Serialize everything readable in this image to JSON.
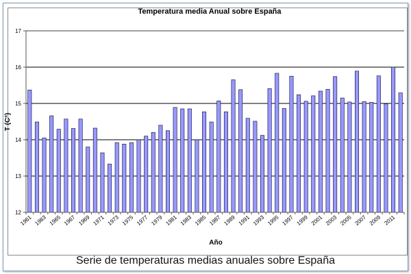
{
  "caption": "Serie de temperaturas medias anuales sobre España",
  "colors": {
    "bar_fill": "#9999ff",
    "bar_stroke": "#1c1c54",
    "grid": "#000000",
    "axis": "#555555"
  },
  "chart_data": {
    "type": "bar",
    "title": "Temperatura media Anual sobre España",
    "xlabel": "Año",
    "ylabel": "T (C°)",
    "ylim": [
      12,
      17
    ],
    "yticks": [
      "12",
      "13",
      "14",
      "15",
      "16",
      "17"
    ],
    "xtick_labels": [
      "1961",
      "1963",
      "1965",
      "1967",
      "1969",
      "1971",
      "1973",
      "1975",
      "1977",
      "1979",
      "1981",
      "1983",
      "1985",
      "1987",
      "1989",
      "1991",
      "1993",
      "1995",
      "1997",
      "1999",
      "2001",
      "2003",
      "2005",
      "2007",
      "2009",
      "2011"
    ],
    "categories": [
      1961,
      1962,
      1963,
      1964,
      1965,
      1966,
      1967,
      1968,
      1969,
      1970,
      1971,
      1972,
      1973,
      1974,
      1975,
      1976,
      1977,
      1978,
      1979,
      1980,
      1981,
      1982,
      1983,
      1984,
      1985,
      1986,
      1987,
      1988,
      1989,
      1990,
      1991,
      1992,
      1993,
      1994,
      1995,
      1996,
      1997,
      1998,
      1999,
      2000,
      2001,
      2002,
      2003,
      2004,
      2005,
      2006,
      2007,
      2008,
      2009,
      2010,
      2011,
      2012
    ],
    "values": [
      15.37,
      14.49,
      14.05,
      14.66,
      14.29,
      14.57,
      14.31,
      14.57,
      13.8,
      14.32,
      13.64,
      13.33,
      13.92,
      13.88,
      13.92,
      14.0,
      14.1,
      14.2,
      14.4,
      14.25,
      14.89,
      14.85,
      14.85,
      14.0,
      14.77,
      14.49,
      15.07,
      14.77,
      15.65,
      15.38,
      14.59,
      14.51,
      14.12,
      15.41,
      15.83,
      14.86,
      15.75,
      15.24,
      15.06,
      15.21,
      15.34,
      15.39,
      15.74,
      15.15,
      15.04,
      15.89,
      15.05,
      15.03,
      15.76,
      14.99,
      16.0,
      15.29
    ]
  }
}
